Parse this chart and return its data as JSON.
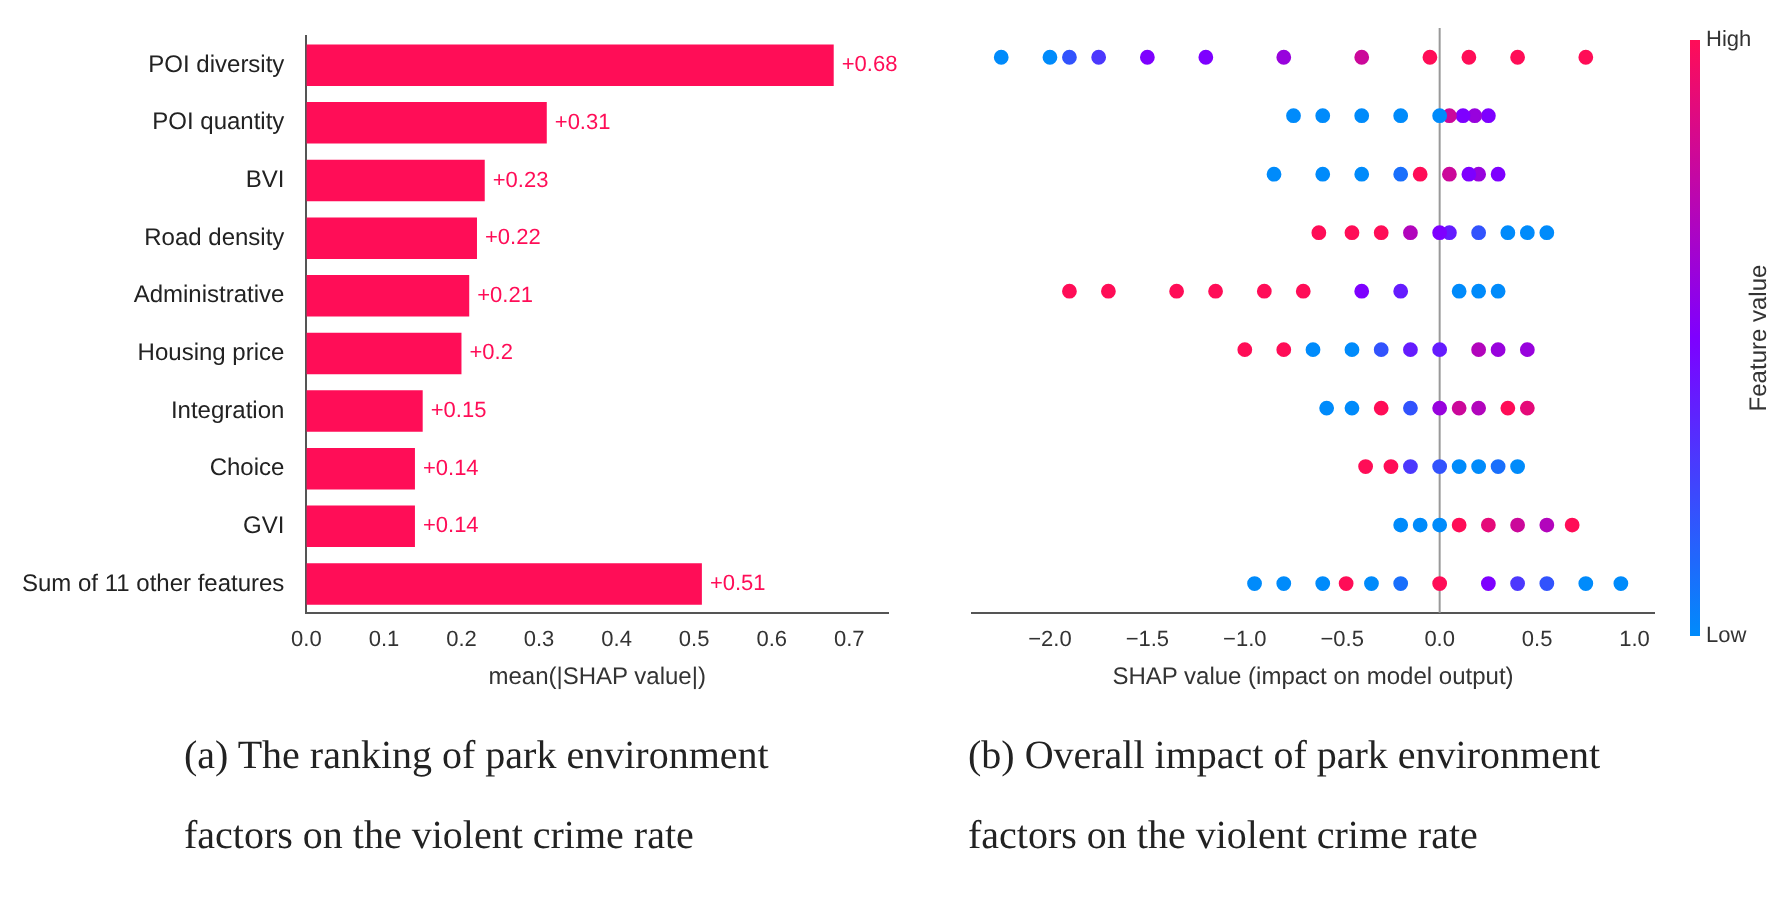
{
  "chart_data": [
    {
      "type": "bar",
      "orientation": "horizontal",
      "categories": [
        "POI diversity",
        "POI quantity",
        "BVI",
        "Road density",
        "Administrative",
        "Housing price",
        "Integration",
        "Choice",
        "GVI",
        "Sum of 11 other features"
      ],
      "values": [
        0.68,
        0.31,
        0.23,
        0.22,
        0.21,
        0.2,
        0.15,
        0.14,
        0.14,
        0.51
      ],
      "color": "#ff0d57",
      "value_labels": [
        "+0.68",
        "+0.31",
        "+0.23",
        "+0.22",
        "+0.21",
        "+0.2",
        "+0.15",
        "+0.14",
        "+0.14",
        "+0.51"
      ],
      "xlabel": "mean(|SHAP value|)",
      "xlim": [
        0,
        0.75
      ],
      "xticks": [
        {
          "value": 0,
          "label": "0.0"
        },
        {
          "value": 0.1,
          "label": "0.1"
        },
        {
          "value": 0.2,
          "label": "0.2"
        },
        {
          "value": 0.3,
          "label": "0.3"
        },
        {
          "value": 0.4,
          "label": "0.4"
        },
        {
          "value": 0.5,
          "label": "0.5"
        },
        {
          "value": 0.6,
          "label": "0.6"
        },
        {
          "value": 0.7,
          "label": "0.7"
        }
      ],
      "legend": false,
      "annotations": [
        "(a) The ranking of park environment factors on the violent crime rate"
      ]
    },
    {
      "type": "scatter",
      "orientation": "horizontal",
      "categories": [
        null,
        null,
        null,
        null,
        null,
        null,
        null,
        null,
        null,
        null
      ],
      "xlabel": "SHAP value (impact on model output)",
      "xlim": [
        -2.4,
        1.1
      ],
      "xticks": [
        {
          "value": -2,
          "label": "−2.0"
        },
        {
          "value": -1.5,
          "label": "−1.5"
        },
        {
          "value": -1,
          "label": "−1.0"
        },
        {
          "value": -0.5,
          "label": "−0.5"
        },
        {
          "value": 0,
          "label": "0.0"
        },
        {
          "value": 0.5,
          "label": "0.5"
        },
        {
          "value": 1,
          "label": "1.0"
        }
      ],
      "tick_labels": "x",
      "legend": false,
      "marker": "circle",
      "clabel": "Feature value",
      "clim": [
        0,
        1
      ],
      "cticks": [
        {
          "value": 0,
          "label": "Low"
        },
        {
          "value": 1,
          "label": "High"
        }
      ],
      "ref_lines": [
        {
          "axis": "x",
          "value": 0,
          "color": "#999999"
        }
      ],
      "annotations": [
        "(b) Overall impact of park environment factors on the violent crime rate"
      ],
      "series": [
        {
          "values": [
            -2.25,
            -0.75,
            -0.85,
            -0.62,
            -1.9,
            -1.0,
            -0.58,
            -0.38,
            -0.2,
            -0.95
          ],
          "cvalues": [
            0,
            0,
            0,
            1,
            1,
            1,
            0,
            1,
            0,
            0
          ],
          "colors": [
            "#008bfb",
            "#008bfb",
            "#008bfb",
            "#ff0d57",
            "#ff0d57",
            "#ff0d57",
            "#008bfb",
            "#ff0d57",
            "#008bfb",
            "#008bfb"
          ]
        },
        {
          "values": [
            -2.0,
            -0.6,
            -0.6,
            -0.45,
            -1.7,
            -0.8,
            -0.45,
            -0.25,
            -0.1,
            -0.8
          ],
          "cvalues": [
            0,
            0,
            0,
            1,
            1,
            1,
            0,
            1,
            0,
            0
          ],
          "colors": [
            "#008bfb",
            "#008bfb",
            "#008bfb",
            "#ff0d57",
            "#ff0d57",
            "#ff0d57",
            "#008bfb",
            "#ff0d57",
            "#008bfb",
            "#008bfb"
          ]
        },
        {
          "values": [
            -1.9,
            -0.4,
            -0.4,
            -0.3,
            -1.35,
            -0.65,
            -0.3,
            -0.15,
            0,
            -0.6
          ],
          "cvalues": [
            0.2,
            0,
            0,
            1,
            1,
            0,
            1,
            0.3,
            0,
            0
          ],
          "colors": [
            "#3253fd",
            "#008bfb",
            "#008bfb",
            "#ff0d57",
            "#ff0d57",
            "#008bfb",
            "#ff0d57",
            "#4c38fd",
            "#008bfb",
            "#008bfb"
          ]
        },
        {
          "values": [
            -1.75,
            -0.2,
            -0.2,
            -0.15,
            -1.15,
            -0.45,
            -0.15,
            0,
            0.1,
            -0.48
          ],
          "cvalues": [
            0.3,
            0,
            0.1,
            0.7,
            1,
            0,
            0.2,
            0.2,
            1,
            1
          ],
          "colors": [
            "#4c38fd",
            "#008bfb",
            "#196ffc",
            "#b205bc",
            "#ff0d57",
            "#008bfb",
            "#3253fd",
            "#3253fd",
            "#ff0d57",
            "#ff0d57"
          ]
        },
        {
          "values": [
            -1.5,
            0,
            -0.1,
            0,
            -0.9,
            -0.3,
            0,
            0.1,
            0.25,
            -0.35
          ],
          "cvalues": [
            0.5,
            0,
            1,
            0.5,
            1,
            0.2,
            0.6,
            0,
            0.9,
            0
          ],
          "colors": [
            "#7e00ff",
            "#008bfb",
            "#ff0d57",
            "#7e00ff",
            "#ff0d57",
            "#3253fd",
            "#9803dd",
            "#008bfb",
            "#e50a79",
            "#008bfb"
          ]
        },
        {
          "values": [
            -1.2,
            0.05,
            0.05,
            0.05,
            -0.7,
            -0.15,
            0.1,
            0.2,
            0.4,
            -0.2
          ],
          "cvalues": [
            0.5,
            0.8,
            0.8,
            0.4,
            1,
            0.4,
            0.8,
            0,
            0.8,
            0.1
          ],
          "colors": [
            "#7e00ff",
            "#cb089a",
            "#cb089a",
            "#651cfe",
            "#ff0d57",
            "#651cfe",
            "#cb089a",
            "#008bfb",
            "#cb089a",
            "#196ffc"
          ]
        },
        {
          "values": [
            -0.8,
            0.12,
            0.15,
            0.2,
            -0.4,
            0,
            0.2,
            0.3,
            0.55,
            0
          ],
          "cvalues": [
            0.6,
            0.5,
            0.5,
            0.2,
            0.5,
            0.4,
            0.7,
            0.1,
            0.7,
            1
          ],
          "colors": [
            "#9803dd",
            "#7e00ff",
            "#7e00ff",
            "#3253fd",
            "#7e00ff",
            "#651cfe",
            "#b205bc",
            "#196ffc",
            "#b205bc",
            "#ff0d57"
          ]
        },
        {
          "values": [
            -0.4,
            0.18,
            0.2,
            0.35,
            -0.2,
            0.2,
            0.35,
            0.4,
            0.68,
            0.25
          ],
          "cvalues": [
            0.8,
            0.6,
            0.6,
            0,
            0.4,
            0.7,
            1,
            0,
            1,
            0.5
          ],
          "colors": [
            "#cb089a",
            "#9803dd",
            "#9803dd",
            "#008bfb",
            "#651cfe",
            "#b205bc",
            "#ff0d57",
            "#008bfb",
            "#ff0d57",
            "#7e00ff"
          ]
        },
        {
          "values": [
            -0.05,
            0.25,
            0.3,
            0.45,
            0.1,
            0.3,
            0.45,
            null,
            null,
            0.4
          ],
          "cvalues": [
            1,
            0.5,
            0.5,
            0,
            0,
            0.6,
            0.9,
            null,
            null,
            0.3
          ],
          "colors": [
            "#ff0d57",
            "#7e00ff",
            "#7e00ff",
            "#008bfb",
            "#008bfb",
            "#9803dd",
            "#e50a79",
            null,
            null,
            "#4c38fd"
          ]
        },
        {
          "values": [
            0.15,
            null,
            null,
            0.55,
            0.2,
            0.45,
            null,
            null,
            null,
            0.55
          ],
          "cvalues": [
            1,
            null,
            null,
            0,
            0,
            0.6,
            null,
            null,
            null,
            0.2
          ],
          "colors": [
            "#ff0d57",
            null,
            null,
            "#008bfb",
            "#008bfb",
            "#9803dd",
            null,
            null,
            null,
            "#3253fd"
          ]
        },
        {
          "values": [
            0.4,
            null,
            null,
            null,
            0.3,
            null,
            null,
            null,
            null,
            0.75
          ],
          "cvalues": [
            1,
            null,
            null,
            null,
            0,
            null,
            null,
            null,
            null,
            0
          ],
          "colors": [
            "#ff0d57",
            null,
            null,
            null,
            "#008bfb",
            null,
            null,
            null,
            null,
            "#008bfb"
          ]
        },
        {
          "values": [
            0.75,
            null,
            null,
            null,
            null,
            null,
            null,
            null,
            null,
            0.93
          ],
          "cvalues": [
            1,
            null,
            null,
            null,
            null,
            null,
            null,
            null,
            null,
            0
          ],
          "colors": [
            "#ff0d57",
            null,
            null,
            null,
            null,
            null,
            null,
            null,
            null,
            "#008bfb"
          ]
        }
      ]
    }
  ]
}
